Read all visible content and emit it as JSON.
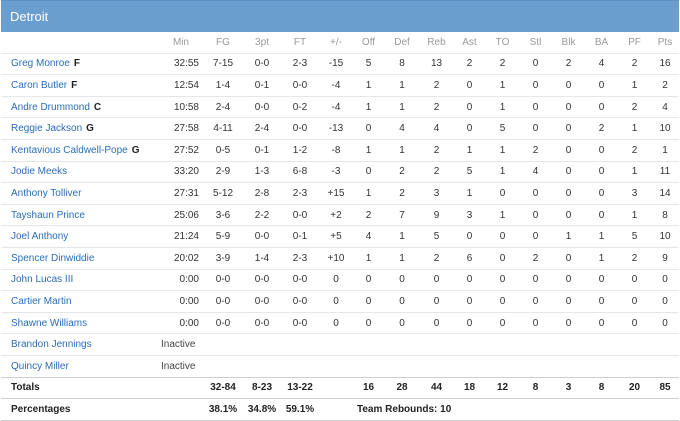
{
  "team": {
    "name": "Detroit"
  },
  "columns": [
    "Min",
    "FG",
    "3pt",
    "FT",
    "+/-",
    "Off",
    "Def",
    "Reb",
    "Ast",
    "TO",
    "Stl",
    "Blk",
    "BA",
    "PF",
    "Pts"
  ],
  "players": [
    {
      "name": "Greg Monroe",
      "pos": "F",
      "stats": [
        "32:55",
        "7-15",
        "0-0",
        "2-3",
        "-15",
        "5",
        "8",
        "13",
        "2",
        "2",
        "0",
        "2",
        "4",
        "2",
        "16"
      ]
    },
    {
      "name": "Caron Butler",
      "pos": "F",
      "stats": [
        "12:54",
        "1-4",
        "0-1",
        "0-0",
        "-4",
        "1",
        "1",
        "2",
        "0",
        "1",
        "0",
        "0",
        "0",
        "1",
        "2"
      ]
    },
    {
      "name": "Andre Drummond",
      "pos": "C",
      "stats": [
        "10:58",
        "2-4",
        "0-0",
        "0-2",
        "-4",
        "1",
        "1",
        "2",
        "0",
        "1",
        "0",
        "0",
        "0",
        "2",
        "4"
      ]
    },
    {
      "name": "Reggie Jackson",
      "pos": "G",
      "stats": [
        "27:58",
        "4-11",
        "2-4",
        "0-0",
        "-13",
        "0",
        "4",
        "4",
        "0",
        "5",
        "0",
        "0",
        "2",
        "1",
        "10"
      ]
    },
    {
      "name": "Kentavious Caldwell-Pope",
      "pos": "G",
      "stats": [
        "27:52",
        "0-5",
        "0-1",
        "1-2",
        "-8",
        "1",
        "1",
        "2",
        "1",
        "1",
        "2",
        "0",
        "0",
        "2",
        "1"
      ]
    },
    {
      "name": "Jodie Meeks",
      "pos": "",
      "stats": [
        "33:20",
        "2-9",
        "1-3",
        "6-8",
        "-3",
        "0",
        "2",
        "2",
        "5",
        "1",
        "4",
        "0",
        "0",
        "1",
        "11"
      ]
    },
    {
      "name": "Anthony Tolliver",
      "pos": "",
      "stats": [
        "27:31",
        "5-12",
        "2-8",
        "2-3",
        "+15",
        "1",
        "2",
        "3",
        "1",
        "0",
        "0",
        "0",
        "0",
        "3",
        "14"
      ]
    },
    {
      "name": "Tayshaun Prince",
      "pos": "",
      "stats": [
        "25:06",
        "3-6",
        "2-2",
        "0-0",
        "+2",
        "2",
        "7",
        "9",
        "3",
        "1",
        "0",
        "0",
        "0",
        "1",
        "8"
      ]
    },
    {
      "name": "Joel Anthony",
      "pos": "",
      "stats": [
        "21:24",
        "5-9",
        "0-0",
        "0-1",
        "+5",
        "4",
        "1",
        "5",
        "0",
        "0",
        "0",
        "1",
        "1",
        "5",
        "10"
      ]
    },
    {
      "name": "Spencer Dinwiddie",
      "pos": "",
      "stats": [
        "20:02",
        "3-9",
        "1-4",
        "2-3",
        "+10",
        "1",
        "1",
        "2",
        "6",
        "0",
        "2",
        "0",
        "1",
        "2",
        "9"
      ]
    },
    {
      "name": "John Lucas III",
      "pos": "",
      "stats": [
        "0:00",
        "0-0",
        "0-0",
        "0-0",
        "0",
        "0",
        "0",
        "0",
        "0",
        "0",
        "0",
        "0",
        "0",
        "0",
        "0"
      ]
    },
    {
      "name": "Cartier Martin",
      "pos": "",
      "stats": [
        "0:00",
        "0-0",
        "0-0",
        "0-0",
        "0",
        "0",
        "0",
        "0",
        "0",
        "0",
        "0",
        "0",
        "0",
        "0",
        "0"
      ]
    },
    {
      "name": "Shawne Williams",
      "pos": "",
      "stats": [
        "0:00",
        "0-0",
        "0-0",
        "0-0",
        "0",
        "0",
        "0",
        "0",
        "0",
        "0",
        "0",
        "0",
        "0",
        "0",
        "0"
      ]
    }
  ],
  "inactive": [
    {
      "name": "Brandon Jennings",
      "status": "Inactive"
    },
    {
      "name": "Quincy Miller",
      "status": "Inactive"
    }
  ],
  "totals": {
    "label": "Totals",
    "fg": "32-84",
    "three": "8-23",
    "ft": "13-22",
    "off": "16",
    "def": "28",
    "reb": "44",
    "ast": "18",
    "to": "12",
    "stl": "8",
    "blk": "3",
    "ba": "8",
    "pf": "20",
    "pts": "85"
  },
  "percentages": {
    "label": "Percentages",
    "fg": "38.1%",
    "three": "34.8%",
    "ft": "59.1%",
    "team_rebounds": "Team Rebounds: 10"
  }
}
